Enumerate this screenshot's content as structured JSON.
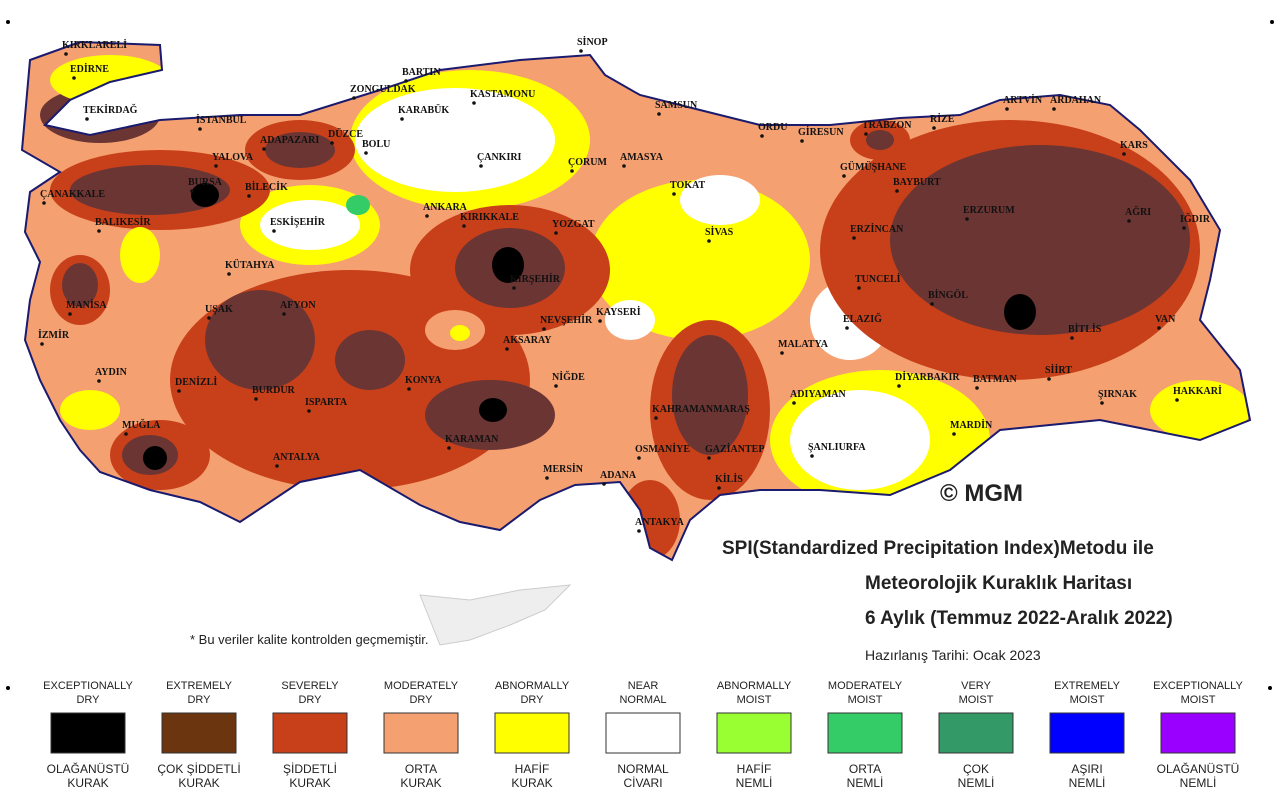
{
  "cities": [
    "KIRKLARELİ",
    "EDİRNE",
    "TEKİRDAĞ",
    "İSTANBUL",
    "ADAPAZARI",
    "DÜZCE",
    "BOLU",
    "ZONGULDAK",
    "BARTIN",
    "KARABÜK",
    "KASTAMONU",
    "SİNOP",
    "SAMSUN",
    "ORDU",
    "GİRESUN",
    "TRABZON",
    "RİZE",
    "ARTVİN",
    "ARDAHAN",
    "KARS",
    "YALOVA",
    "BURSA",
    "ÇANAKKALE",
    "BALIKESİR",
    "BİLECİK",
    "ESKİŞEHİR",
    "ANKARA",
    "ÇANKIRI",
    "ÇORUM",
    "AMASYA",
    "TOKAT",
    "GÜMÜŞHANE",
    "BAYBURT",
    "ERZURUM",
    "AĞRI",
    "IĞDIR",
    "ERZİNCAN",
    "KIRIKKALE",
    "YOZGAT",
    "SİVAS",
    "KÜTAHYA",
    "MANİSA",
    "UŞAK",
    "AFYON",
    "KIRŞEHİR",
    "NEVŞEHİR",
    "KAYSERİ",
    "TUNCELİ",
    "BİNGÖL",
    "ELAZIĞ",
    "VAN",
    "BİTLİS",
    "İZMİR",
    "AKSARAY",
    "MALATYA",
    "AYDIN",
    "DENİZLİ",
    "KONYA",
    "NİĞDE",
    "DİYARBAKIR",
    "BATMAN",
    "SİİRT",
    "ŞIRNAK",
    "HAKKARİ",
    "BURDUR",
    "ISPARTA",
    "KAHRAMANMARAŞ",
    "ADIYAMAN",
    "MUĞLA",
    "KARAMAN",
    "OSMANİYE",
    "GAZİANTEP",
    "ŞANLIURFA",
    "MARDİN",
    "ANTALYA",
    "MERSİN",
    "ADANA",
    "KİLİS",
    "ANTAKYA"
  ],
  "copyright": "© MGM",
  "title": [
    "SPI(Standardized Precipitation Index)Metodu ile",
    "Meteorolojik Kuraklık Haritası",
    "6 Aylık (Temmuz 2022-Aralık 2022)"
  ],
  "prepared": "Hazırlanış Tarihi: Ocak 2023",
  "note": "* Bu veriler kalite kontrolden geçmemiştir.",
  "legend": [
    {
      "en": [
        "EXCEPTIONALLY",
        "DRY"
      ],
      "tr": [
        "OLAĞANÜSTÜ",
        "KURAK"
      ],
      "color": "#000000"
    },
    {
      "en": [
        "EXTREMELY",
        "DRY"
      ],
      "tr": [
        "ÇOK ŞİDDETLİ",
        "KURAK"
      ],
      "color": "#6b3510"
    },
    {
      "en": [
        "SEVERELY",
        "DRY"
      ],
      "tr": [
        "ŞİDDETLİ",
        "KURAK"
      ],
      "color": "#c8401a"
    },
    {
      "en": [
        "MODERATELY",
        "DRY"
      ],
      "tr": [
        "ORTA",
        "KURAK"
      ],
      "color": "#f5a070"
    },
    {
      "en": [
        "ABNORMALLY",
        "DRY"
      ],
      "tr": [
        "HAFİF",
        "KURAK"
      ],
      "color": "#ffff00"
    },
    {
      "en": [
        "NEAR",
        "NORMAL"
      ],
      "tr": [
        "NORMAL",
        "CİVARI"
      ],
      "color": "#ffffff"
    },
    {
      "en": [
        "ABNORMALLY",
        "MOIST"
      ],
      "tr": [
        "HAFİF",
        "NEMLİ"
      ],
      "color": "#99ff33"
    },
    {
      "en": [
        "MODERATELY",
        "MOIST"
      ],
      "tr": [
        "ORTA",
        "NEMLİ"
      ],
      "color": "#33cc66"
    },
    {
      "en": [
        "VERY",
        "MOIST"
      ],
      "tr": [
        "ÇOK",
        "NEMLİ"
      ],
      "color": "#339966"
    },
    {
      "en": [
        "EXTREMELY",
        "MOIST"
      ],
      "tr": [
        "AŞIRI",
        "NEMLİ"
      ],
      "color": "#0000ff"
    },
    {
      "en": [
        "EXCEPTIONALLY",
        "MOIST"
      ],
      "tr": [
        "OLAĞANÜSTÜ",
        "NEMLİ"
      ],
      "color": "#9900ff"
    }
  ]
}
